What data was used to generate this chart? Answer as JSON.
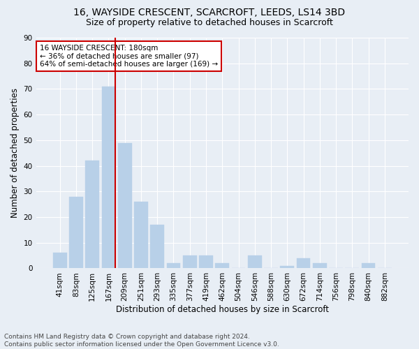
{
  "title1": "16, WAYSIDE CRESCENT, SCARCROFT, LEEDS, LS14 3BD",
  "title2": "Size of property relative to detached houses in Scarcroft",
  "xlabel": "Distribution of detached houses by size in Scarcroft",
  "ylabel": "Number of detached properties",
  "categories": [
    "41sqm",
    "83sqm",
    "125sqm",
    "167sqm",
    "209sqm",
    "251sqm",
    "293sqm",
    "335sqm",
    "377sqm",
    "419sqm",
    "462sqm",
    "504sqm",
    "546sqm",
    "588sqm",
    "630sqm",
    "672sqm",
    "714sqm",
    "756sqm",
    "798sqm",
    "840sqm",
    "882sqm"
  ],
  "values": [
    6,
    28,
    42,
    71,
    49,
    26,
    17,
    2,
    5,
    5,
    2,
    0,
    5,
    0,
    1,
    4,
    2,
    0,
    0,
    2,
    0
  ],
  "bar_color": "#b8d0e8",
  "bar_edge_color": "#b8d0e8",
  "vline_x_idx": 3,
  "vline_color": "#cc0000",
  "annotation_text": "16 WAYSIDE CRESCENT: 180sqm\n← 36% of detached houses are smaller (97)\n64% of semi-detached houses are larger (169) →",
  "annotation_box_color": "#ffffff",
  "annotation_box_edge": "#cc0000",
  "ylim": [
    0,
    90
  ],
  "yticks": [
    0,
    10,
    20,
    30,
    40,
    50,
    60,
    70,
    80,
    90
  ],
  "footer": "Contains HM Land Registry data © Crown copyright and database right 2024.\nContains public sector information licensed under the Open Government Licence v3.0.",
  "fig_bg_color": "#e8eef5",
  "plot_bg": "#e8eef5",
  "grid_color": "#ffffff",
  "title1_fontsize": 10,
  "title2_fontsize": 9,
  "xlabel_fontsize": 8.5,
  "ylabel_fontsize": 8.5,
  "tick_fontsize": 7.5,
  "footer_fontsize": 6.5
}
